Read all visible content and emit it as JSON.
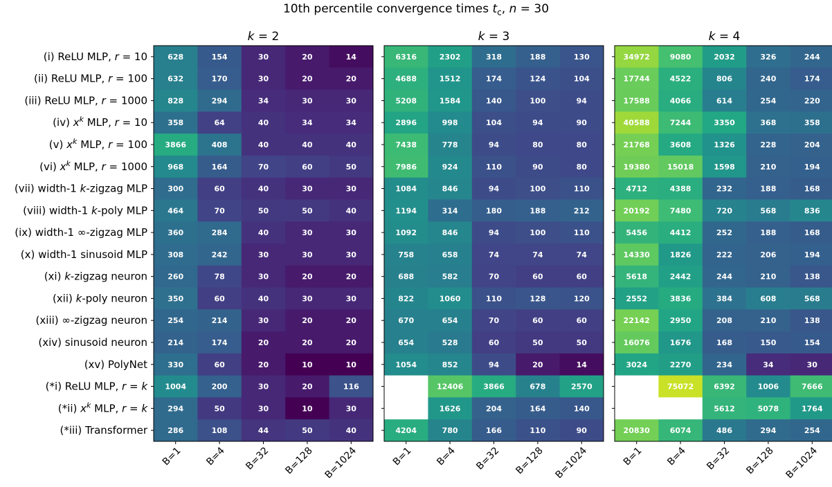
{
  "chart_data": {
    "type": "heatmap",
    "title": "10th percentile convergence times t_c, n = 30",
    "title_parts": [
      "10th percentile convergence times ",
      "t",
      "c",
      ", ",
      "n",
      " = 30"
    ],
    "colormap": "viridis",
    "color_scale": "log",
    "color_range": [
      10,
      75072
    ],
    "rows": [
      "(i) ReLU MLP, r = 10",
      "(ii) ReLU MLP, r = 100",
      "(iii) ReLU MLP, r = 1000",
      "(iv) x^k MLP, r = 10",
      "(v) x^k MLP, r = 100",
      "(vi) x^k MLP, r = 1000",
      "(vii) width-1 k-zigzag MLP",
      "(viii) width-1 k-poly MLP",
      "(ix) width-1 ∞-zigzag MLP",
      "(x) width-1 sinusoid MLP",
      "(xi) k-zigzag neuron",
      "(xii) k-poly neuron",
      "(xiii) ∞-zigzag neuron",
      "(xiv) sinusoid neuron",
      "(xv) PolyNet",
      "(*i) ReLU MLP, r = k",
      "(*ii) x^k MLP, r = k",
      "(*iii) Transformer"
    ],
    "row_labels_rich": [
      [
        [
          "(i) ReLU MLP, ",
          ""
        ],
        [
          "r",
          "i"
        ],
        [
          " = 10",
          ""
        ]
      ],
      [
        [
          "(ii) ReLU MLP, ",
          ""
        ],
        [
          "r",
          "i"
        ],
        [
          " = 100",
          ""
        ]
      ],
      [
        [
          "(iii) ReLU MLP, ",
          ""
        ],
        [
          "r",
          "i"
        ],
        [
          " = 1000",
          ""
        ]
      ],
      [
        [
          "(iv) ",
          ""
        ],
        [
          "x",
          "i"
        ],
        [
          "k",
          "sup"
        ],
        [
          " MLP, ",
          ""
        ],
        [
          "r",
          "i"
        ],
        [
          " = 10",
          ""
        ]
      ],
      [
        [
          "(v) ",
          ""
        ],
        [
          "x",
          "i"
        ],
        [
          "k",
          "sup"
        ],
        [
          " MLP, ",
          ""
        ],
        [
          "r",
          "i"
        ],
        [
          " = 100",
          ""
        ]
      ],
      [
        [
          "(vi) ",
          ""
        ],
        [
          "x",
          "i"
        ],
        [
          "k",
          "sup"
        ],
        [
          " MLP, ",
          ""
        ],
        [
          "r",
          "i"
        ],
        [
          " = 1000",
          ""
        ]
      ],
      [
        [
          "(vii) width-1 ",
          ""
        ],
        [
          "k",
          "i"
        ],
        [
          "-zigzag MLP",
          ""
        ]
      ],
      [
        [
          "(viii) width-1 ",
          ""
        ],
        [
          "k",
          "i"
        ],
        [
          "-poly MLP",
          ""
        ]
      ],
      [
        [
          "(ix) width-1 ∞-zigzag MLP",
          ""
        ]
      ],
      [
        [
          "(x) width-1 sinusoid MLP",
          ""
        ]
      ],
      [
        [
          "(xi) ",
          ""
        ],
        [
          "k",
          "i"
        ],
        [
          "-zigzag neuron",
          ""
        ]
      ],
      [
        [
          "(xii) ",
          ""
        ],
        [
          "k",
          "i"
        ],
        [
          "-poly neuron",
          ""
        ]
      ],
      [
        [
          "(xiii) ∞-zigzag neuron",
          ""
        ]
      ],
      [
        [
          "(xiv) sinusoid neuron",
          ""
        ]
      ],
      [
        [
          "(xv) PolyNet",
          ""
        ]
      ],
      [
        [
          "(*i) ReLU MLP, ",
          ""
        ],
        [
          "r",
          "i"
        ],
        [
          " = ",
          ""
        ],
        [
          "k",
          "i"
        ]
      ],
      [
        [
          "(*ii) ",
          ""
        ],
        [
          "x",
          "i"
        ],
        [
          "k",
          "sup"
        ],
        [
          " MLP, ",
          ""
        ],
        [
          "r",
          "i"
        ],
        [
          " = ",
          ""
        ],
        [
          "k",
          "i"
        ]
      ],
      [
        [
          "(*iii) Transformer",
          ""
        ]
      ]
    ],
    "columns": [
      "B=1",
      "B=4",
      "B=32",
      "B=128",
      "B=1024"
    ],
    "panels": [
      {
        "title": "k = 2",
        "title_var": "k",
        "title_rest": " = 2",
        "values": [
          [
            628,
            154,
            30,
            20,
            14
          ],
          [
            632,
            170,
            30,
            20,
            20
          ],
          [
            828,
            294,
            34,
            30,
            30
          ],
          [
            358,
            64,
            40,
            34,
            34
          ],
          [
            3866,
            408,
            40,
            40,
            40
          ],
          [
            968,
            164,
            70,
            60,
            50
          ],
          [
            300,
            60,
            40,
            30,
            30
          ],
          [
            464,
            70,
            50,
            50,
            40
          ],
          [
            360,
            284,
            40,
            30,
            30
          ],
          [
            308,
            242,
            30,
            30,
            30
          ],
          [
            260,
            78,
            30,
            20,
            20
          ],
          [
            350,
            60,
            40,
            30,
            30
          ],
          [
            254,
            214,
            30,
            20,
            20
          ],
          [
            214,
            174,
            20,
            20,
            20
          ],
          [
            330,
            60,
            20,
            10,
            10
          ],
          [
            1004,
            200,
            30,
            20,
            116
          ],
          [
            294,
            50,
            30,
            10,
            30
          ],
          [
            286,
            108,
            44,
            50,
            40
          ]
        ]
      },
      {
        "title": "k = 3",
        "title_var": "k",
        "title_rest": " = 3",
        "values": [
          [
            6316,
            2302,
            318,
            188,
            130
          ],
          [
            4688,
            1512,
            174,
            124,
            104
          ],
          [
            5208,
            1584,
            140,
            100,
            94
          ],
          [
            2896,
            998,
            104,
            94,
            90
          ],
          [
            7438,
            778,
            94,
            80,
            80
          ],
          [
            7986,
            924,
            110,
            90,
            80
          ],
          [
            1084,
            846,
            94,
            100,
            110
          ],
          [
            1194,
            314,
            180,
            188,
            212
          ],
          [
            1092,
            846,
            94,
            100,
            110
          ],
          [
            758,
            658,
            74,
            74,
            74
          ],
          [
            688,
            582,
            70,
            60,
            60
          ],
          [
            822,
            1060,
            110,
            128,
            120
          ],
          [
            670,
            654,
            70,
            60,
            60
          ],
          [
            654,
            528,
            60,
            50,
            50
          ],
          [
            1054,
            852,
            94,
            20,
            14
          ],
          [
            null,
            12406,
            3866,
            678,
            2570
          ],
          [
            null,
            1626,
            204,
            164,
            140
          ],
          [
            4204,
            780,
            166,
            110,
            90
          ]
        ]
      },
      {
        "title": "k = 4",
        "title_var": "k",
        "title_rest": " = 4",
        "values": [
          [
            34972,
            9080,
            2032,
            326,
            244
          ],
          [
            17744,
            4522,
            806,
            240,
            174
          ],
          [
            17588,
            4066,
            614,
            254,
            220
          ],
          [
            40588,
            7244,
            3350,
            368,
            358
          ],
          [
            21768,
            3608,
            1326,
            228,
            204
          ],
          [
            19380,
            15018,
            1598,
            210,
            194
          ],
          [
            4712,
            4388,
            232,
            188,
            168
          ],
          [
            20192,
            7480,
            720,
            568,
            836
          ],
          [
            5456,
            4412,
            252,
            188,
            168
          ],
          [
            14330,
            1826,
            222,
            206,
            194
          ],
          [
            5618,
            2442,
            244,
            210,
            138
          ],
          [
            2552,
            3836,
            384,
            608,
            568
          ],
          [
            22142,
            2950,
            208,
            210,
            138
          ],
          [
            16076,
            1676,
            168,
            150,
            154
          ],
          [
            3024,
            2270,
            234,
            34,
            30
          ],
          [
            null,
            75072,
            6392,
            1006,
            7666
          ],
          [
            null,
            null,
            5612,
            5078,
            1764
          ],
          [
            20830,
            6074,
            486,
            294,
            254
          ]
        ]
      }
    ]
  }
}
